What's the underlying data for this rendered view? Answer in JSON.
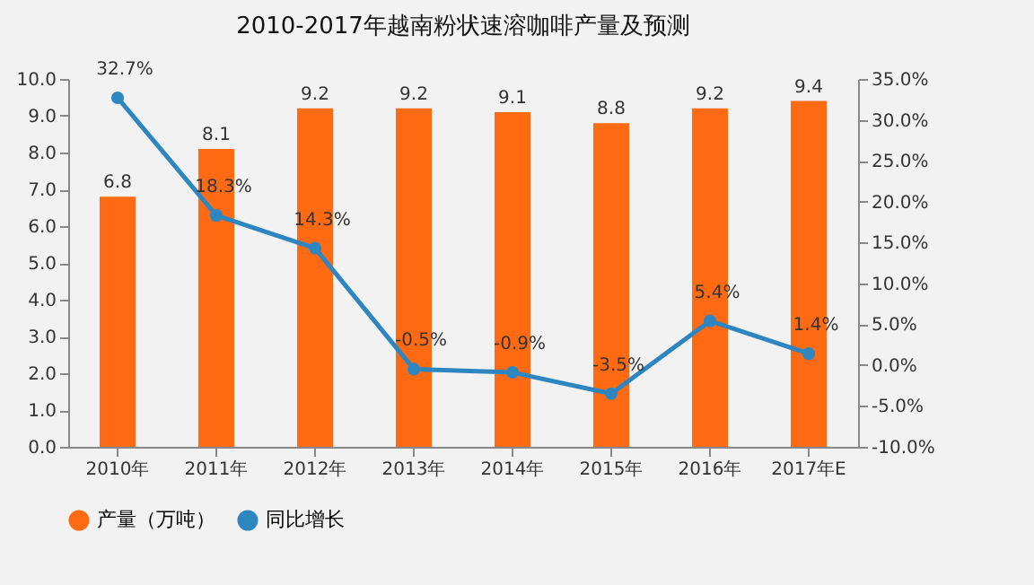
{
  "chart_data": {
    "type": "bar",
    "title": "2010-2017年越南粉状速溶咖啡产量及预测",
    "categories": [
      "2010年",
      "2011年",
      "2012年",
      "2013年",
      "2014年",
      "2015年",
      "2016年",
      "2017年E"
    ],
    "series": [
      {
        "name": "产量（万吨）",
        "color": "#ff6a13",
        "values": [
          6.8,
          8.1,
          9.2,
          9.2,
          9.1,
          8.8,
          9.2,
          9.4
        ],
        "value_labels": [
          "6.8",
          "8.1",
          "9.2",
          "9.2",
          "9.1",
          "8.8",
          "9.2",
          "9.4"
        ]
      },
      {
        "name": "同比增长",
        "type": "line",
        "axis": "y2",
        "color": "#2e86c1",
        "values": [
          32.7,
          18.3,
          14.3,
          -0.5,
          -0.9,
          -3.5,
          5.4,
          1.4
        ],
        "value_labels": [
          "32.7%",
          "18.3%",
          "14.3%",
          "-0.5%",
          "-0.9%",
          "-3.5%",
          "5.4%",
          "1.4%"
        ]
      }
    ],
    "ylim": [
      0,
      10
    ],
    "yticks": [
      {
        "value": 0,
        "label": "0.0"
      },
      {
        "value": 1,
        "label": "1.0"
      },
      {
        "value": 2,
        "label": "2.0"
      },
      {
        "value": 3,
        "label": "3.0"
      },
      {
        "value": 4,
        "label": "4.0"
      },
      {
        "value": 5,
        "label": "5.0"
      },
      {
        "value": 6,
        "label": "6.0"
      },
      {
        "value": 7,
        "label": "7.0"
      },
      {
        "value": 8,
        "label": "8.0"
      },
      {
        "value": 9,
        "label": "9.0"
      },
      {
        "value": 10,
        "label": "10.0"
      }
    ],
    "y2lim": [
      -10,
      35
    ],
    "y2ticks": [
      {
        "value": -10,
        "label": "-10.0%"
      },
      {
        "value": -5,
        "label": "-5.0%"
      },
      {
        "value": 0,
        "label": "0.0%"
      },
      {
        "value": 5,
        "label": "5.0%"
      },
      {
        "value": 10,
        "label": "10.0%"
      },
      {
        "value": 15,
        "label": "15.0%"
      },
      {
        "value": 20,
        "label": "20.0%"
      },
      {
        "value": 25,
        "label": "25.0%"
      },
      {
        "value": 30,
        "label": "30.0%"
      },
      {
        "value": 35,
        "label": "35.0%"
      }
    ],
    "marker": "circle",
    "grid": false,
    "legend": "bottom"
  }
}
